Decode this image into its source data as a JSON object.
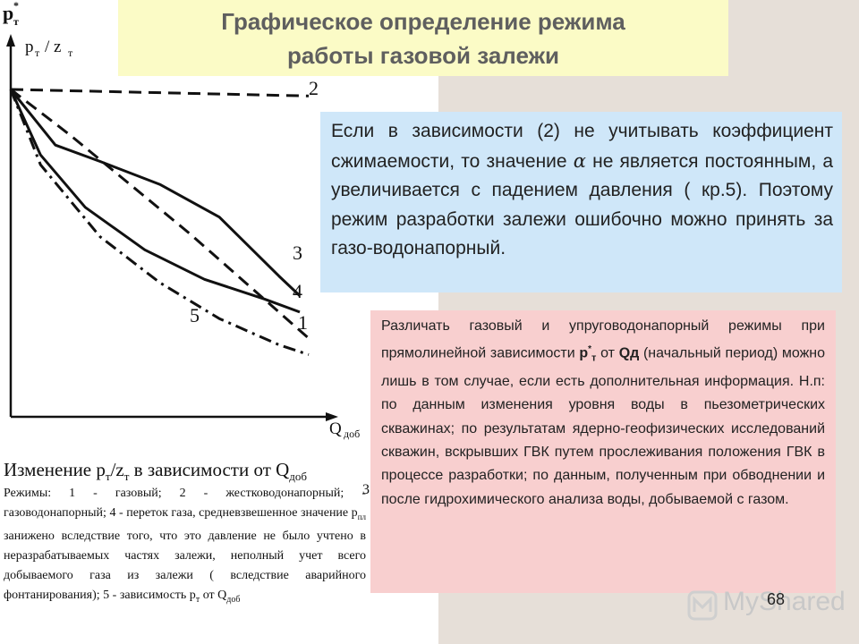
{
  "title": {
    "line1": "Графическое определение режима",
    "line2": "работы газовой залежи"
  },
  "chart": {
    "ylabel_p": "p",
    "ylabel_sub": "т",
    "ylabel_slash": "/ z",
    "ylabel_sub2": "т",
    "top_symbol_p": "p",
    "top_symbol_star": "*",
    "top_symbol_sub": "т",
    "xlabel": "Q",
    "xlabel_sub": "доб",
    "curve_labels": [
      "2",
      "3",
      "4",
      "5",
      "1"
    ]
  },
  "chart_data": {
    "type": "line",
    "xlabel": "Qдоб",
    "ylabel": "pт / zт",
    "series": [
      {
        "name": "1",
        "style": "dashed",
        "x": [
          0,
          0.2,
          0.4,
          0.6,
          0.8,
          1.0
        ],
        "y": [
          1.0,
          0.86,
          0.71,
          0.56,
          0.4,
          0.24
        ]
      },
      {
        "name": "2",
        "style": "dashed",
        "x": [
          0,
          1.0
        ],
        "y": [
          1.0,
          0.98
        ]
      },
      {
        "name": "3",
        "style": "solid",
        "x": [
          0,
          0.15,
          0.3,
          0.5,
          0.7,
          0.9,
          0.97
        ],
        "y": [
          1.0,
          0.83,
          0.78,
          0.71,
          0.61,
          0.43,
          0.37
        ]
      },
      {
        "name": "4",
        "style": "solid",
        "x": [
          0,
          0.1,
          0.25,
          0.45,
          0.65,
          0.85,
          0.97
        ],
        "y": [
          1.0,
          0.8,
          0.64,
          0.51,
          0.42,
          0.36,
          0.32
        ]
      },
      {
        "name": "5",
        "style": "dash-dot",
        "x": [
          0,
          0.1,
          0.3,
          0.5,
          0.7,
          0.9,
          1.0
        ],
        "y": [
          1.0,
          0.77,
          0.55,
          0.41,
          0.3,
          0.22,
          0.19
        ]
      }
    ]
  },
  "caption": {
    "title_a": "Изменение p",
    "title_sub1": "т",
    "title_b": "/z",
    "title_sub2": "т",
    "title_c": " в зависимости от Q",
    "title_sub3": "доб",
    "body_1": "Режимы: 1 - газовый; 2 - жестководонапорный; - газоводонапорный; 4 - переток газа, средневзвешенное значение p",
    "body_sub1": "пл",
    "body_2": " занижено вследствие того, что это давление не было учтено в неразрабатываемых частях залежи, неполный учет всего добываемого газа из залежи ( вследствие аварийного фонтанирования); 5 - зависимость p",
    "body_sub2": "т",
    "body_3": " от Q",
    "body_sub3": "доб",
    "stray": "3"
  },
  "blue_box": {
    "text_before": "Если в зависимости (2) не учитывать коэффициент сжимаемости, то значение ",
    "symbol": "α",
    "text_after": " не является постоянным, а увеличивается с падением давления ( кр.5). Поэтому режим разработки залежи ошибочно можно принять за газо-водонапорный."
  },
  "pink_box": {
    "t1": "Различать газовый и упруговодонапорный режимы при прямолинейной зависимости ",
    "b1": "p",
    "b1_sup": "*",
    "b1_sub": "т",
    "t2": " от ",
    "b2": "Qд",
    "t3": " (начальный период) можно лишь в том случае, если есть дополнительная информация. Н.п: по данным изменения уровня воды в пьезометрических скважинах; по результатам ядерно-геофизических исследований скважин, вскрывших ГВК путем прослеживания положения ГВК в процессе разработки; по данным, полученным при обводнении и после гидрохимического анализа воды, добываемой с газом."
  },
  "footer": {
    "page_number": "68",
    "watermark": "MyShared"
  }
}
